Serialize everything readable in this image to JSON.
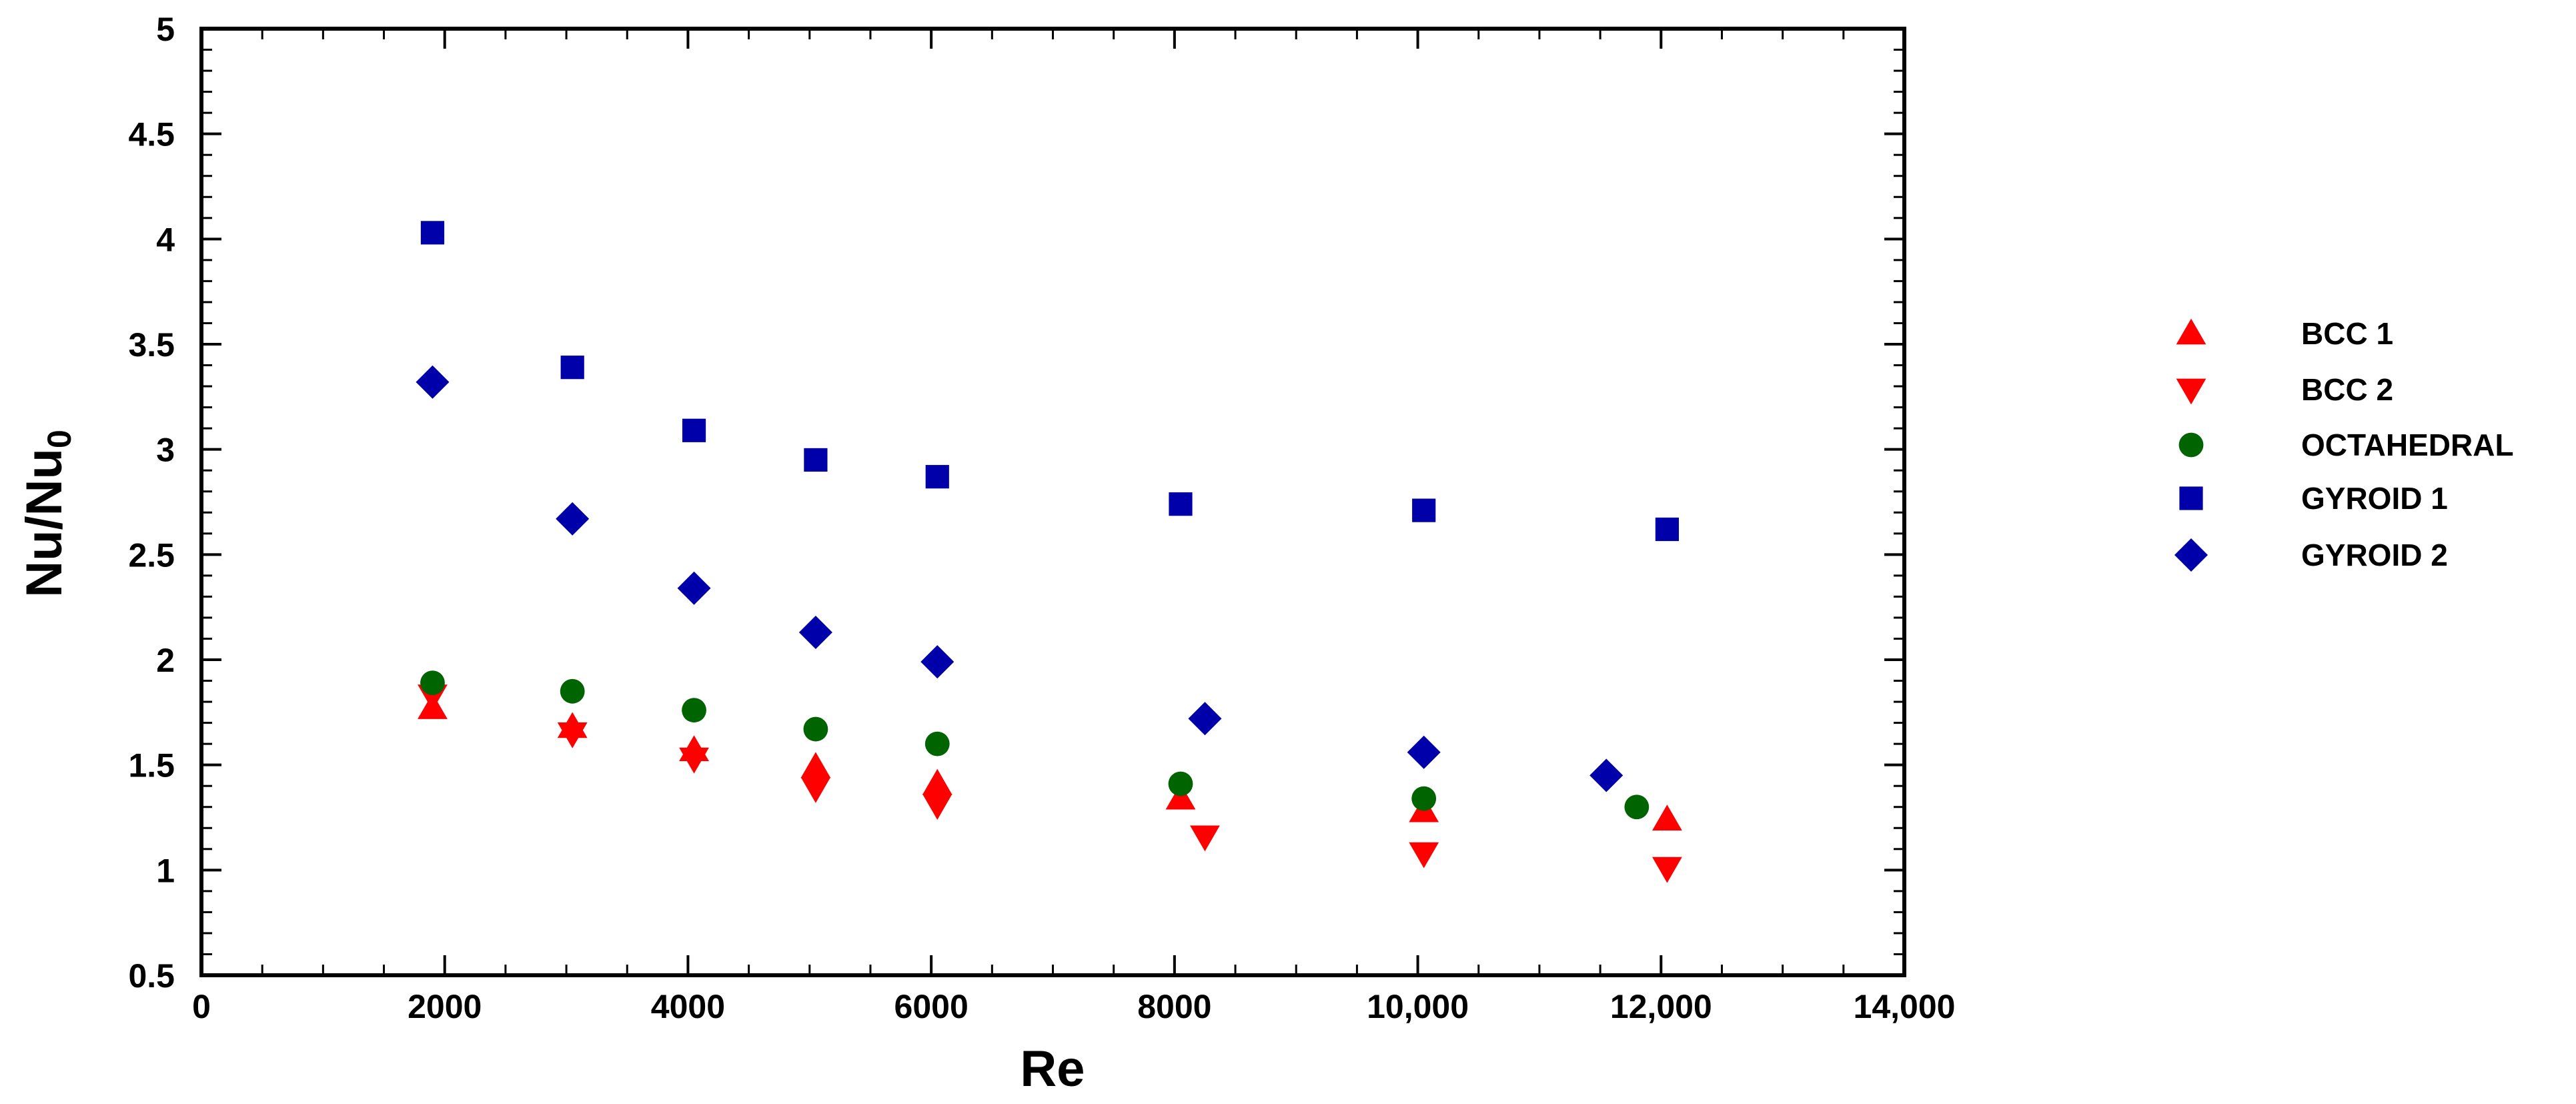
{
  "chart_data": {
    "type": "scatter",
    "title": "",
    "xlabel": "Re",
    "ylabel": {
      "main": "Nu/Nu",
      "subscript": "0"
    },
    "xlim": [
      0,
      14000
    ],
    "ylim": [
      0.5,
      5
    ],
    "x_ticks": [
      0,
      2000,
      4000,
      6000,
      8000,
      10000,
      12000,
      14000
    ],
    "x_tick_labels": [
      "0",
      "2000",
      "4000",
      "6000",
      "8000",
      "10,000",
      "12,000",
      "14,000"
    ],
    "y_ticks": [
      0.5,
      1,
      1.5,
      2,
      2.5,
      3,
      3.5,
      4,
      4.5,
      5
    ],
    "y_tick_labels": [
      "0.5",
      "1",
      "1.5",
      "2",
      "2.5",
      "3",
      "3.5",
      "4",
      "4.5",
      "5"
    ],
    "grid": false,
    "legend_position": "right",
    "series": [
      {
        "name": "BCC 1",
        "marker": "triangle-up",
        "color": "#ff0000",
        "x": [
          1900,
          3050,
          4050,
          5050,
          6050,
          8050,
          10050,
          12050
        ],
        "y": [
          1.77,
          1.68,
          1.57,
          1.49,
          1.41,
          1.34,
          1.28,
          1.24
        ]
      },
      {
        "name": "BCC 2",
        "marker": "triangle-down",
        "color": "#ff0000",
        "x": [
          1900,
          3050,
          4050,
          5050,
          6050,
          8250,
          10050,
          12050
        ],
        "y": [
          1.83,
          1.65,
          1.53,
          1.39,
          1.31,
          1.16,
          1.08,
          1.01
        ]
      },
      {
        "name": "OCTAHEDRAL",
        "marker": "circle",
        "color": "#006400",
        "x": [
          1900,
          3050,
          4050,
          5050,
          6050,
          8050,
          10050,
          11800
        ],
        "y": [
          1.89,
          1.85,
          1.76,
          1.67,
          1.6,
          1.41,
          1.34,
          1.3
        ]
      },
      {
        "name": "GYROID 1",
        "marker": "square",
        "color": "#0000aa",
        "x": [
          1900,
          3050,
          4050,
          5050,
          6050,
          8050,
          10050,
          12050
        ],
        "y": [
          4.03,
          3.39,
          3.09,
          2.95,
          2.87,
          2.74,
          2.71,
          2.62
        ]
      },
      {
        "name": "GYROID 2",
        "marker": "diamond",
        "color": "#0000aa",
        "x": [
          1900,
          3050,
          4050,
          5050,
          6050,
          8250,
          10050,
          11550
        ],
        "y": [
          3.32,
          2.67,
          2.34,
          2.13,
          1.99,
          1.72,
          1.56,
          1.45
        ]
      }
    ]
  }
}
